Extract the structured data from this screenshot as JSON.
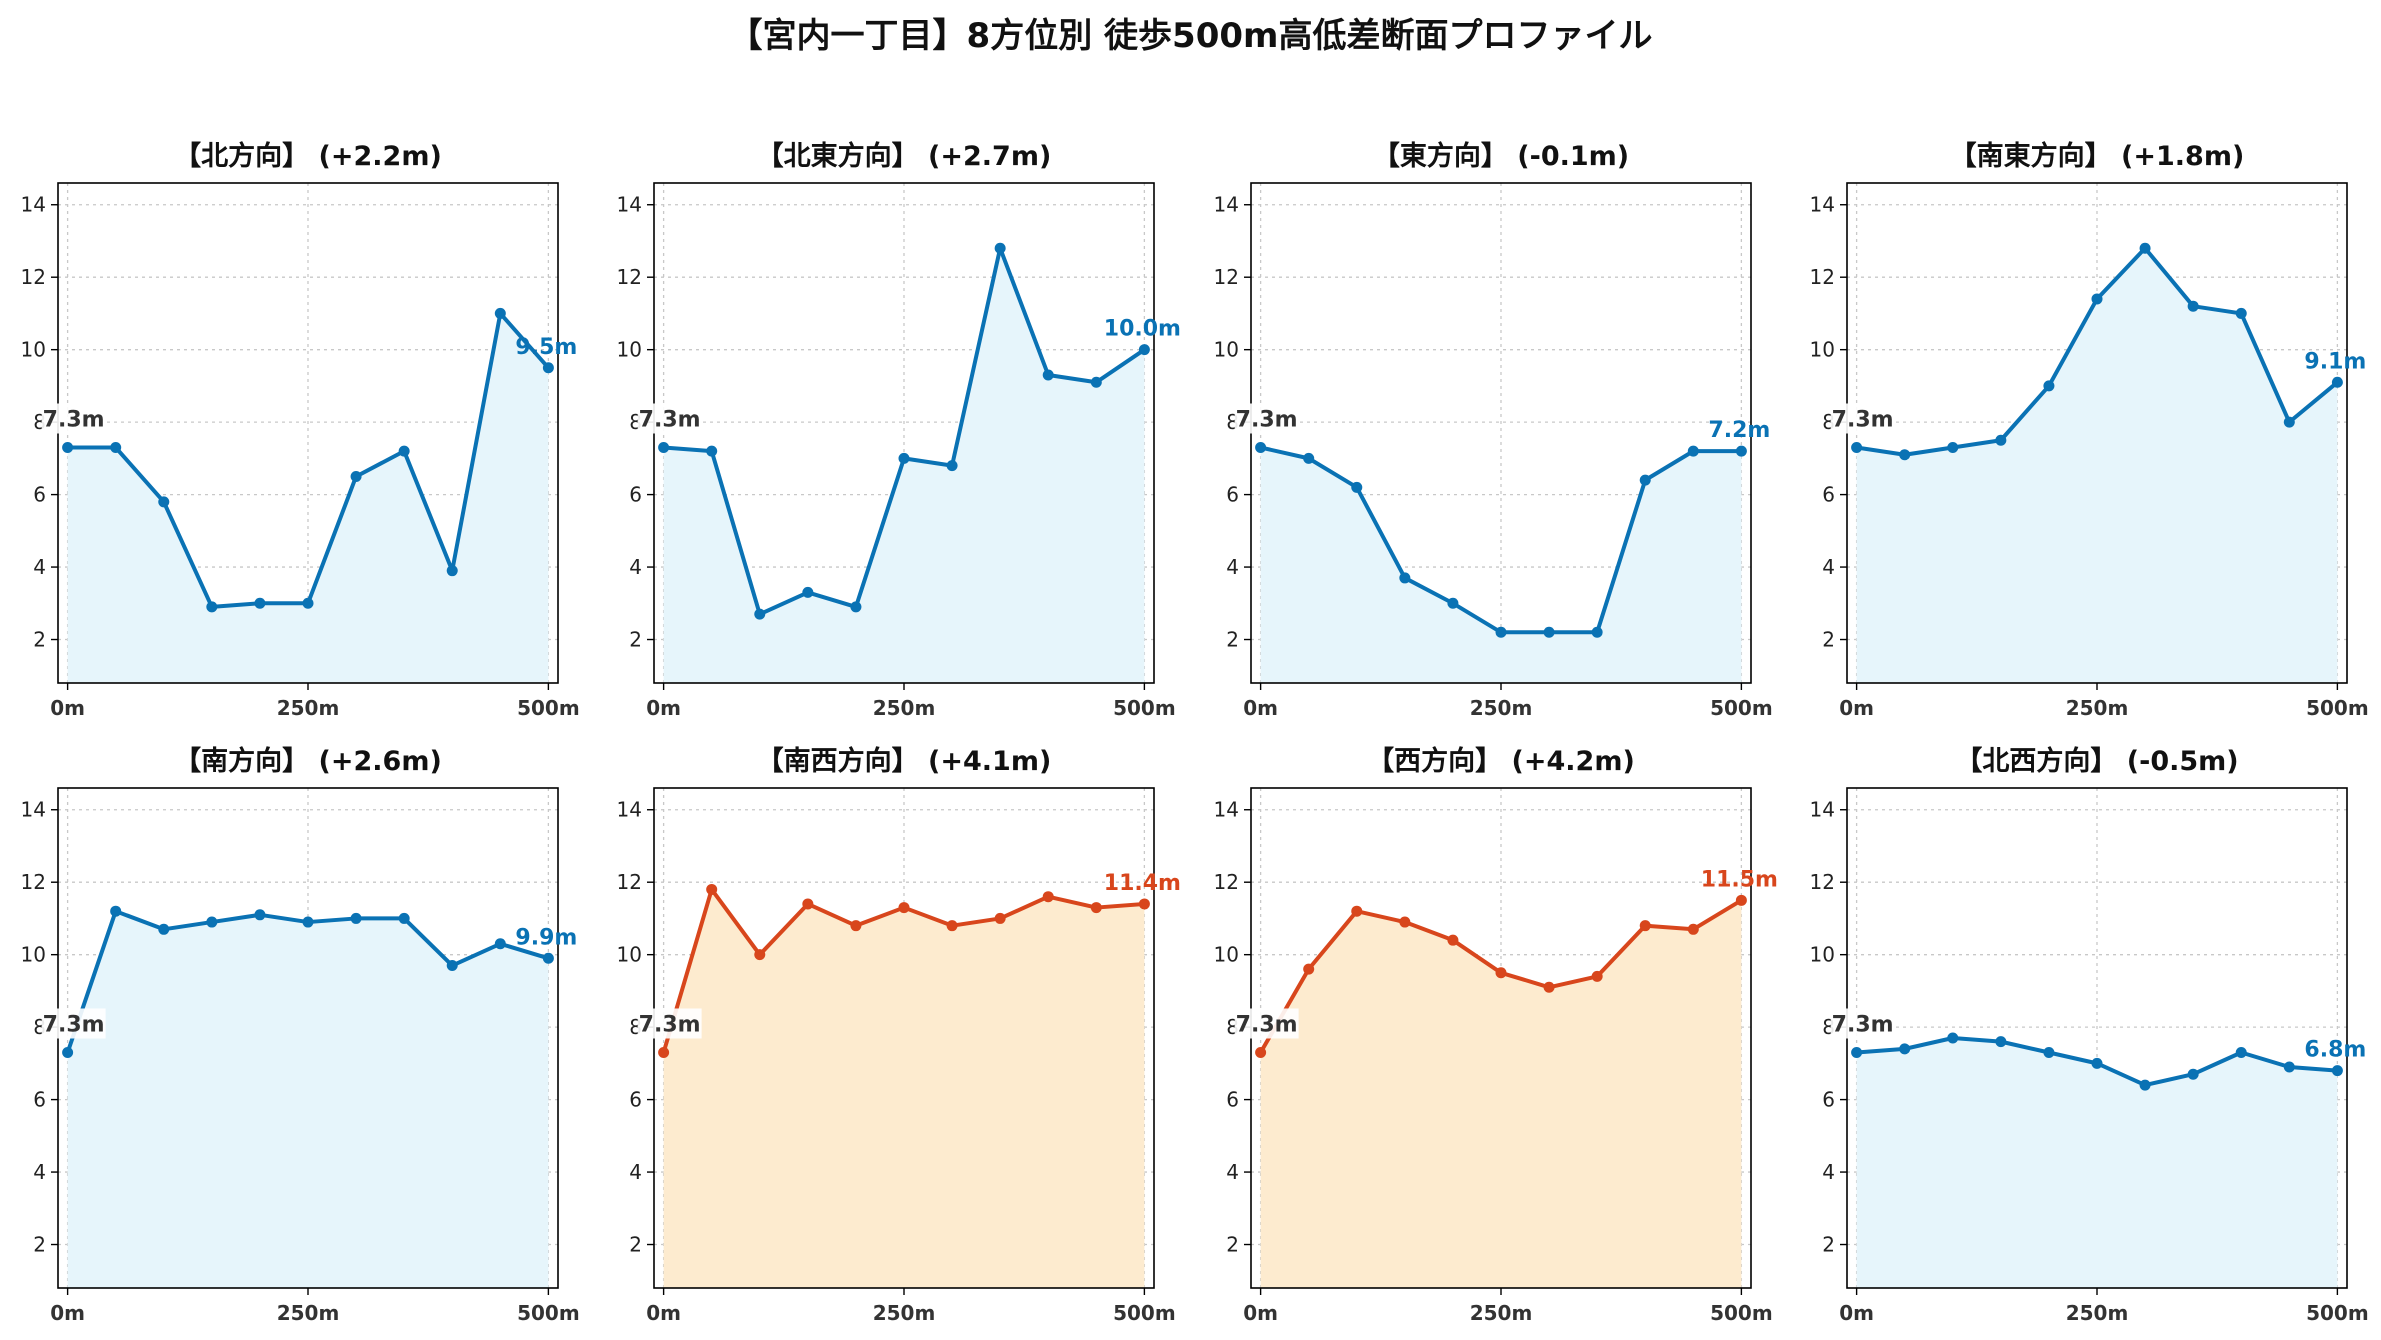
{
  "title": "【宮内一丁目】8方位別 徒歩500m高低差断面プロファイル",
  "colors": {
    "up_line": "#0a72b4",
    "up_fill": "#e6f5fb",
    "steep_line": "#d8461c",
    "steep_fill": "#fdebcf",
    "grid": "#c8c8c8",
    "start_label": "#333333"
  },
  "chart_data": [
    {
      "type": "area",
      "title": "【北方向】 (+2.2m)",
      "color_scheme": "blue",
      "x": [
        0,
        50,
        100,
        150,
        200,
        250,
        300,
        350,
        400,
        450,
        500
      ],
      "y": [
        7.3,
        7.3,
        5.8,
        2.9,
        3.0,
        3.0,
        6.5,
        7.2,
        3.9,
        11.0,
        9.5
      ],
      "start_label": "7.3m",
      "end_label": "9.5m",
      "xticks": [
        0,
        250,
        500
      ],
      "xtick_labels": [
        "0m",
        "250m",
        "500m"
      ],
      "yticks": [
        2,
        4,
        6,
        8,
        10,
        12,
        14
      ],
      "ylim": [
        0.8,
        14.6
      ],
      "xlim": [
        -10,
        510
      ],
      "grid": true
    },
    {
      "type": "area",
      "title": "【北東方向】 (+2.7m)",
      "color_scheme": "blue",
      "x": [
        0,
        50,
        100,
        150,
        200,
        250,
        300,
        350,
        400,
        450,
        500
      ],
      "y": [
        7.3,
        7.2,
        2.7,
        3.3,
        2.9,
        7.0,
        6.8,
        12.8,
        9.3,
        9.1,
        10.0
      ],
      "start_label": "7.3m",
      "end_label": "10.0m",
      "xticks": [
        0,
        250,
        500
      ],
      "xtick_labels": [
        "0m",
        "250m",
        "500m"
      ],
      "yticks": [
        2,
        4,
        6,
        8,
        10,
        12,
        14
      ],
      "ylim": [
        0.8,
        14.6
      ],
      "xlim": [
        -10,
        510
      ],
      "grid": true
    },
    {
      "type": "area",
      "title": "【東方向】 (-0.1m)",
      "color_scheme": "blue",
      "x": [
        0,
        50,
        100,
        150,
        200,
        250,
        300,
        350,
        400,
        450,
        500
      ],
      "y": [
        7.3,
        7.0,
        6.2,
        3.7,
        3.0,
        2.2,
        2.2,
        2.2,
        6.4,
        7.2,
        7.2
      ],
      "start_label": "7.3m",
      "end_label": "7.2m",
      "xticks": [
        0,
        250,
        500
      ],
      "xtick_labels": [
        "0m",
        "250m",
        "500m"
      ],
      "yticks": [
        2,
        4,
        6,
        8,
        10,
        12,
        14
      ],
      "ylim": [
        0.8,
        14.6
      ],
      "xlim": [
        -10,
        510
      ],
      "grid": true
    },
    {
      "type": "area",
      "title": "【南東方向】 (+1.8m)",
      "color_scheme": "blue",
      "x": [
        0,
        50,
        100,
        150,
        200,
        250,
        300,
        350,
        400,
        450,
        500
      ],
      "y": [
        7.3,
        7.1,
        7.3,
        7.5,
        9.0,
        11.4,
        12.8,
        11.2,
        11.0,
        8.0,
        9.1
      ],
      "start_label": "7.3m",
      "end_label": "9.1m",
      "xticks": [
        0,
        250,
        500
      ],
      "xtick_labels": [
        "0m",
        "250m",
        "500m"
      ],
      "yticks": [
        2,
        4,
        6,
        8,
        10,
        12,
        14
      ],
      "ylim": [
        0.8,
        14.6
      ],
      "xlim": [
        -10,
        510
      ],
      "grid": true
    },
    {
      "type": "area",
      "title": "【南方向】 (+2.6m)",
      "color_scheme": "blue",
      "x": [
        0,
        50,
        100,
        150,
        200,
        250,
        300,
        350,
        400,
        450,
        500
      ],
      "y": [
        7.3,
        11.2,
        10.7,
        10.9,
        11.1,
        10.9,
        11.0,
        11.0,
        9.7,
        10.3,
        9.9
      ],
      "start_label": "7.3m",
      "end_label": "9.9m",
      "xticks": [
        0,
        250,
        500
      ],
      "xtick_labels": [
        "0m",
        "250m",
        "500m"
      ],
      "yticks": [
        2,
        4,
        6,
        8,
        10,
        12,
        14
      ],
      "ylim": [
        0.8,
        14.6
      ],
      "xlim": [
        -10,
        510
      ],
      "grid": true
    },
    {
      "type": "area",
      "title": "【南西方向】 (+4.1m)",
      "color_scheme": "orange",
      "x": [
        0,
        50,
        100,
        150,
        200,
        250,
        300,
        350,
        400,
        450,
        500
      ],
      "y": [
        7.3,
        11.8,
        10.0,
        11.4,
        10.8,
        11.3,
        10.8,
        11.0,
        11.6,
        11.3,
        11.4
      ],
      "start_label": "7.3m",
      "end_label": "11.4m",
      "xticks": [
        0,
        250,
        500
      ],
      "xtick_labels": [
        "0m",
        "250m",
        "500m"
      ],
      "yticks": [
        2,
        4,
        6,
        8,
        10,
        12,
        14
      ],
      "ylim": [
        0.8,
        14.6
      ],
      "xlim": [
        -10,
        510
      ],
      "grid": true
    },
    {
      "type": "area",
      "title": "【西方向】 (+4.2m)",
      "color_scheme": "orange",
      "x": [
        0,
        50,
        100,
        150,
        200,
        250,
        300,
        350,
        400,
        450,
        500
      ],
      "y": [
        7.3,
        9.6,
        11.2,
        10.9,
        10.4,
        9.5,
        9.1,
        9.4,
        10.8,
        10.7,
        11.5
      ],
      "start_label": "7.3m",
      "end_label": "11.5m",
      "xticks": [
        0,
        250,
        500
      ],
      "xtick_labels": [
        "0m",
        "250m",
        "500m"
      ],
      "yticks": [
        2,
        4,
        6,
        8,
        10,
        12,
        14
      ],
      "ylim": [
        0.8,
        14.6
      ],
      "xlim": [
        -10,
        510
      ],
      "grid": true
    },
    {
      "type": "area",
      "title": "【北西方向】 (-0.5m)",
      "color_scheme": "blue",
      "x": [
        0,
        50,
        100,
        150,
        200,
        250,
        300,
        350,
        400,
        450,
        500
      ],
      "y": [
        7.3,
        7.4,
        7.7,
        7.6,
        7.3,
        7.0,
        6.4,
        6.7,
        7.3,
        6.9,
        6.8
      ],
      "start_label": "7.3m",
      "end_label": "6.8m",
      "xticks": [
        0,
        250,
        500
      ],
      "xtick_labels": [
        "0m",
        "250m",
        "500m"
      ],
      "yticks": [
        2,
        4,
        6,
        8,
        10,
        12,
        14
      ],
      "ylim": [
        0.8,
        14.6
      ],
      "xlim": [
        -10,
        510
      ],
      "grid": true
    }
  ]
}
